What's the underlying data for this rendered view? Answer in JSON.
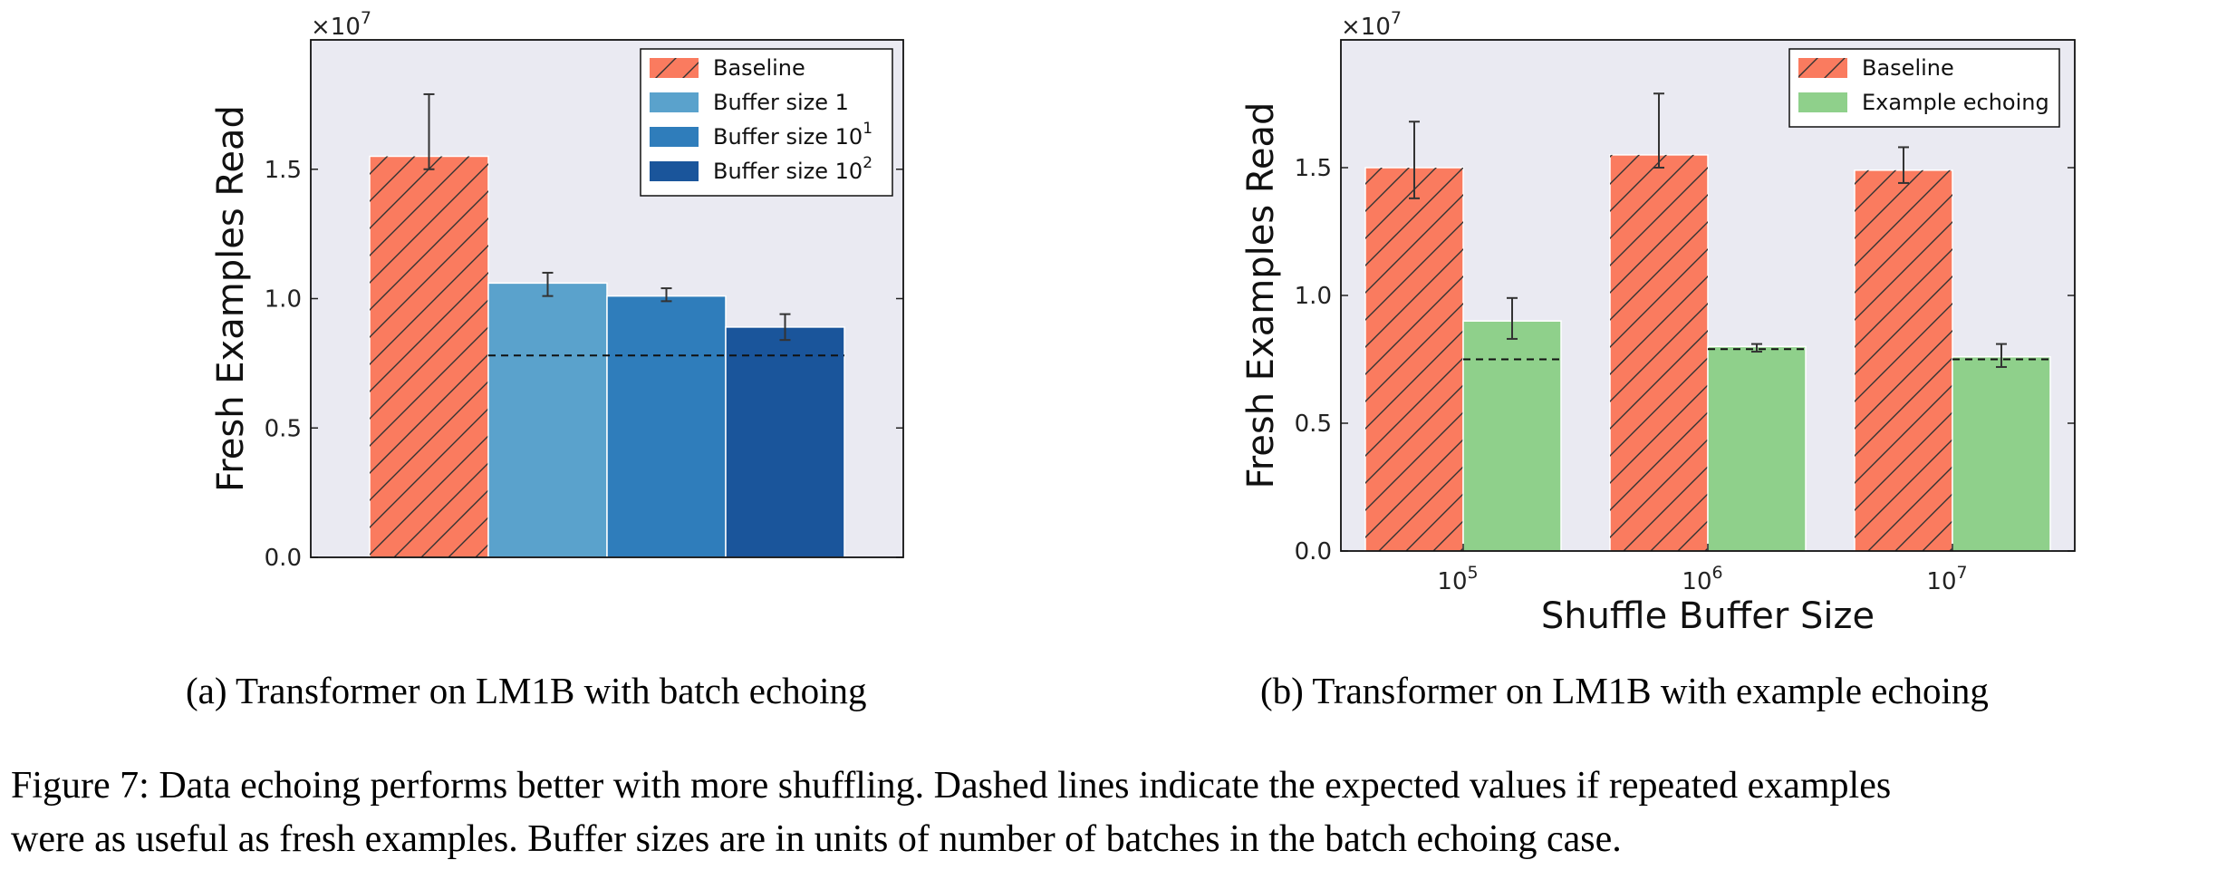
{
  "subcaptions": {
    "a": "(a) Transformer on LM1B with batch echoing",
    "b": "(b) Transformer on LM1B with example echoing"
  },
  "figure_caption": {
    "line1": "Figure 7: Data echoing performs better with more shuffling. Dashed lines indicate the expected values if repeated examples",
    "line2": "were as useful as fresh examples. Buffer sizes are in units of number of batches in the batch echoing case."
  },
  "colors": {
    "plot_bg": "#eaeaf2",
    "baseline": "#fa7b5f",
    "buffer1": "#5aa2cc",
    "buffer10": "#2f7dbb",
    "buffer100": "#1a559b",
    "echo": "#8fd08b"
  },
  "chart_data": [
    {
      "type": "bar",
      "title": "",
      "xlabel": "",
      "ylabel": "Fresh Examples Read",
      "y_multiplier": "×10⁷",
      "ylim": [
        0,
        2.0
      ],
      "yticks": [
        "0.0",
        "0.5",
        "1.0",
        "1.5"
      ],
      "grid": false,
      "legend_position": "top-right",
      "expected_line": 0.78,
      "bars": [
        {
          "name": "Baseline",
          "value": 1.55,
          "err": [
            1.5,
            1.79
          ],
          "hatch": true,
          "color": "#fa7b5f"
        },
        {
          "name": "Buffer size 1",
          "value": 1.06,
          "err": [
            1.01,
            1.1
          ],
          "hatch": false,
          "color": "#5aa2cc"
        },
        {
          "name": "Buffer size 10",
          "sup": "1",
          "value": 1.01,
          "err": [
            0.99,
            1.04
          ],
          "hatch": false,
          "color": "#2f7dbb"
        },
        {
          "name": "Buffer size 10",
          "sup": "2",
          "value": 0.89,
          "err": [
            0.84,
            0.94
          ],
          "hatch": false,
          "color": "#1a559b"
        }
      ]
    },
    {
      "type": "bar",
      "title": "",
      "xlabel": "Shuffle Buffer Size",
      "ylabel": "Fresh Examples Read",
      "y_multiplier": "×10⁷",
      "ylim": [
        0,
        2.0
      ],
      "yticks": [
        "0.0",
        "0.5",
        "1.0",
        "1.5"
      ],
      "grid": false,
      "legend_position": "top-right",
      "categories": [
        {
          "base": "10",
          "exp": "5"
        },
        {
          "base": "10",
          "exp": "6"
        },
        {
          "base": "10",
          "exp": "7"
        }
      ],
      "series": [
        {
          "name": "Baseline",
          "hatch": true,
          "color": "#fa7b5f",
          "values": [
            1.5,
            1.55,
            1.49
          ],
          "errors": [
            [
              1.38,
              1.68
            ],
            [
              1.5,
              1.79
            ],
            [
              1.44,
              1.58
            ]
          ]
        },
        {
          "name": "Example echoing",
          "hatch": false,
          "color": "#8fd08b",
          "values": [
            0.9,
            0.8,
            0.76
          ],
          "errors": [
            [
              0.83,
              0.99
            ],
            [
              0.78,
              0.81
            ],
            [
              0.72,
              0.81
            ]
          ]
        }
      ],
      "expected_lines": [
        0.75,
        0.79,
        0.75
      ]
    }
  ]
}
